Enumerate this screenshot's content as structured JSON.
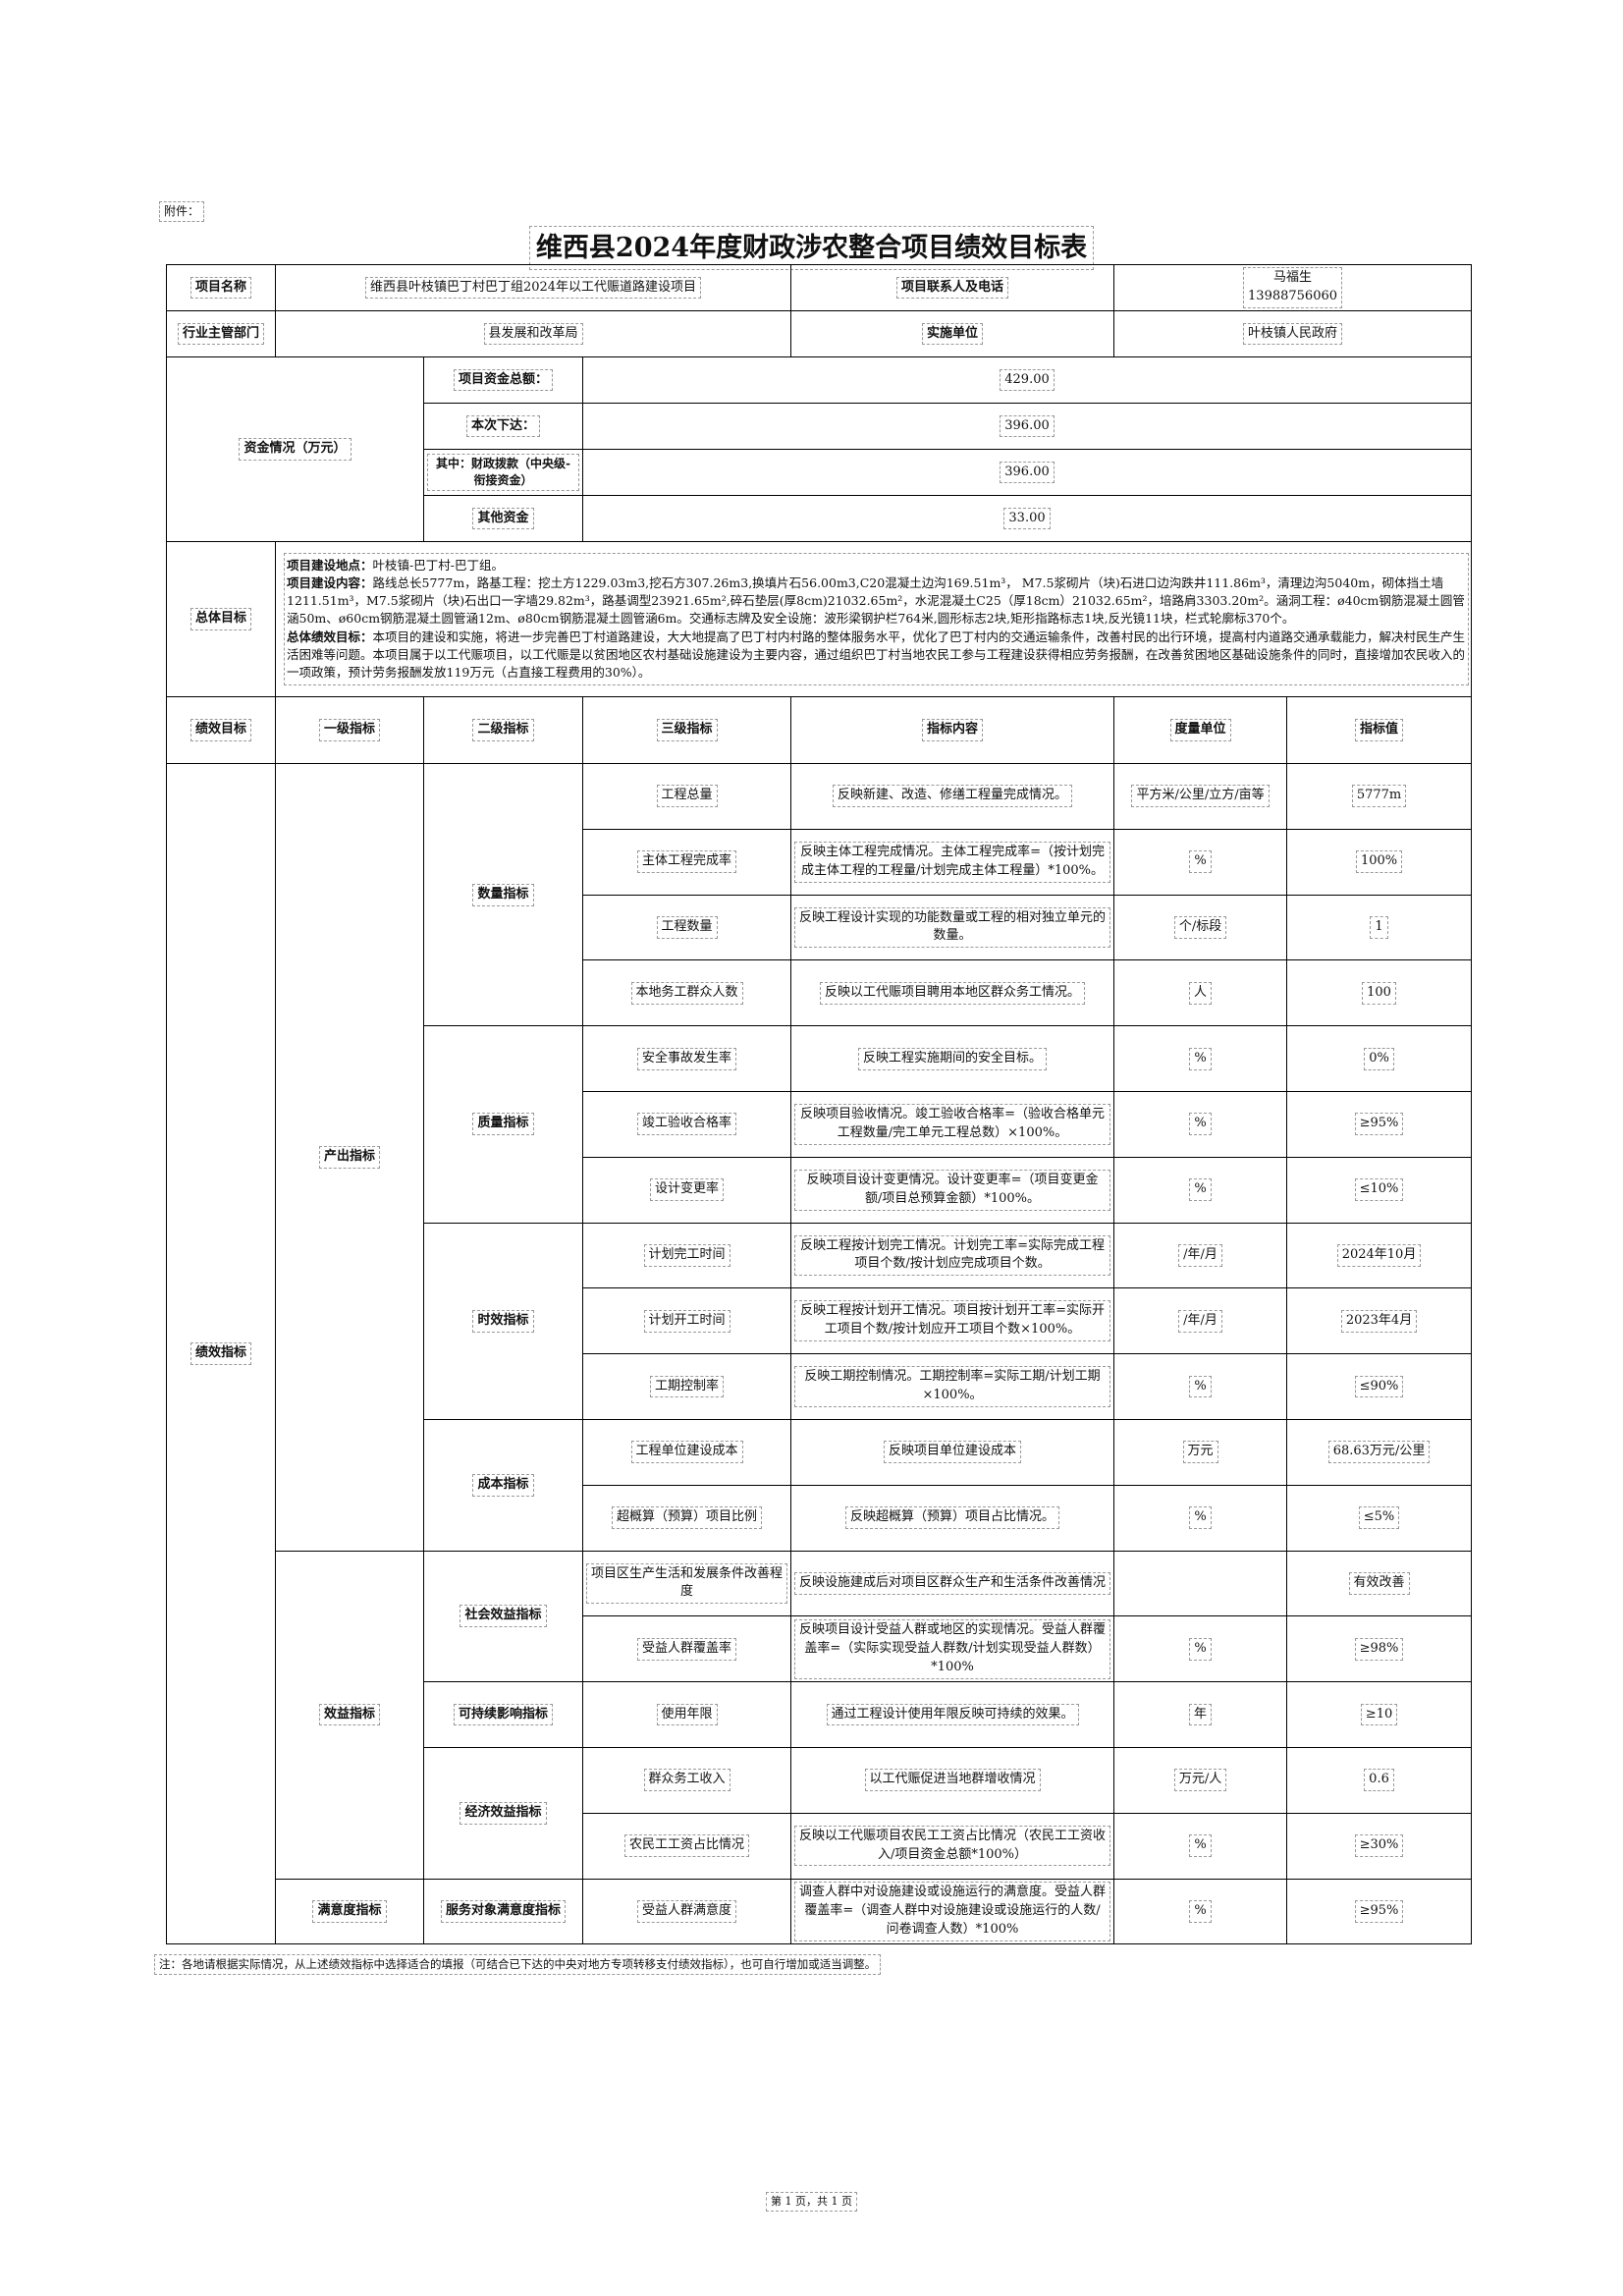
{
  "attachment_label": "附件：",
  "title": "维西县2024年度财政涉农整合项目绩效目标表",
  "project": {
    "name_label": "项目名称",
    "name_value": "维西县叶枝镇巴丁村巴丁组2024年以工代赈道路建设项目",
    "contact_label": "项目联系人及电话",
    "contact_name": "马福生",
    "contact_phone": "13988756060",
    "dept_label": "行业主管部门",
    "dept_value": "县发展和改革局",
    "impl_label": "实施单位",
    "impl_value": "叶枝镇人民政府"
  },
  "funds": {
    "label": "资金情况（万元）",
    "rows": [
      {
        "label": "项目资金总额：",
        "value": "429.00"
      },
      {
        "label": "本次下达：",
        "value": "396.00"
      },
      {
        "label": "其中：财政拨款（中央级-衔接资金）",
        "value": "396.00"
      },
      {
        "label": "其他资金",
        "value": "33.00"
      }
    ]
  },
  "goal": {
    "label": "总体目标",
    "location_label": "项目建设地点：",
    "location": "叶枝镇-巴丁村-巴丁组。",
    "content_label": "项目建设内容：",
    "content": "路线总长5777m，路基工程：挖土方1229.03m3,挖石方307.26m3,换填片石56.00m3,C20混凝土边沟169.51m³， M7.5浆砌片（块)石进口边沟跌井111.86m³，清理边沟5040m，砌体挡土墙1211.51m³，M7.5浆砌片（块)石出口一字墙29.82m³，路基调型23921.65m²,碎石垫层(厚8cm)21032.65m²，水泥混凝土C25（厚18cm）21032.65m²，培路肩3303.20m²。涵洞工程：ø40cm钢筋混凝土圆管涵50m、ø60cm钢筋混凝土圆管涵12m、ø80cm钢筋混凝土圆管涵6m。交通标志牌及安全设施：波形梁钢护栏764米,圆形标志2块,矩形指路标志1块,反光镜11块，栏式轮廓标370个。",
    "perf_label": "总体绩效目标：",
    "perf": "本项目的建设和实施，将进一步完善巴丁村道路建设，大大地提高了巴丁村内村路的整体服务水平，优化了巴丁村内的交通运输条件，改善村民的出行环境，提高村内道路交通承载能力，解决村民生产生活困难等问题。本项目属于以工代赈项目，以工代赈是以贫困地区农村基础设施建设为主要内容，通过组织巴丁村当地农民工参与工程建设获得相应劳务报酬，在改善贫困地区基础设施条件的同时，直接增加农民收入的一项政策，预计劳务报酬发放119万元（占直接工程费用的30%）。"
  },
  "headers": [
    "绩效目标",
    "一级指标",
    "二级指标",
    "三级指标",
    "指标内容",
    "度量单位",
    "指标值"
  ],
  "perf_label": "绩效指标",
  "level1": [
    {
      "name": "产出指标",
      "groups": [
        {
          "name": "数量指标",
          "items": [
            {
              "name": "工程总量",
              "content": "反映新建、改造、修缮工程量完成情况。",
              "unit": "平方米/公里/立方/亩等",
              "value": "5777m"
            },
            {
              "name": "主体工程完成率",
              "content": "反映主体工程完成情况。主体工程完成率=（按计划完成主体工程的工程量/计划完成主体工程量）*100%。",
              "unit": "%",
              "value": "100%"
            },
            {
              "name": "工程数量",
              "content": "反映工程设计实现的功能数量或工程的相对独立单元的数量。",
              "unit": "个/标段",
              "value": "1"
            },
            {
              "name": "本地务工群众人数",
              "content": "反映以工代赈项目聘用本地区群众务工情况。",
              "unit": "人",
              "value": "100"
            }
          ]
        },
        {
          "name": "质量指标",
          "items": [
            {
              "name": "安全事故发生率",
              "content": "反映工程实施期间的安全目标。",
              "unit": "%",
              "value": "0%"
            },
            {
              "name": "竣工验收合格率",
              "content": "反映项目验收情况。竣工验收合格率=（验收合格单元工程数量/完工单元工程总数）×100%。",
              "unit": "%",
              "value": "≥95%"
            },
            {
              "name": "设计变更率",
              "content": "反映项目设计变更情况。设计变更率=（项目变更金额/项目总预算金额）*100%。",
              "unit": "%",
              "value": "≤10%"
            }
          ]
        },
        {
          "name": "时效指标",
          "items": [
            {
              "name": "计划完工时间",
              "content": "反映工程按计划完工情况。计划完工率=实际完成工程项目个数/按计划应完成项目个数。",
              "unit": "/年/月",
              "value": "2024年10月"
            },
            {
              "name": "计划开工时间",
              "content": "反映工程按计划开工情况。项目按计划开工率=实际开工项目个数/按计划应开工项目个数×100%。",
              "unit": "/年/月",
              "value": "2023年4月"
            },
            {
              "name": "工期控制率",
              "content": "反映工期控制情况。工期控制率=实际工期/计划工期×100%。",
              "unit": "%",
              "value": "≤90%"
            }
          ]
        },
        {
          "name": "成本指标",
          "items": [
            {
              "name": "工程单位建设成本",
              "content": "反映项目单位建设成本",
              "unit": "万元",
              "value": "68.63万元/公里"
            },
            {
              "name": "超概算（预算）项目比例",
              "content": "反映超概算（预算）项目占比情况。",
              "unit": "%",
              "value": "≤5%"
            }
          ]
        }
      ]
    },
    {
      "name": "效益指标",
      "groups": [
        {
          "name": "社会效益指标",
          "items": [
            {
              "name": "项目区生产生活和发展条件改善程度",
              "content": "反映设施建成后对项目区群众生产和生活条件改善情况",
              "unit": "",
              "value": "有效改善"
            },
            {
              "name": "受益人群覆盖率",
              "content": "反映项目设计受益人群或地区的实现情况。受益人群覆盖率=（实际实现受益人群数/计划实现受益人群数）*100%",
              "unit": "%",
              "value": "≥98%"
            }
          ]
        },
        {
          "name": "可持续影响指标",
          "items": [
            {
              "name": "使用年限",
              "content": "通过工程设计使用年限反映可持续的效果。",
              "unit": "年",
              "value": "≥10"
            }
          ]
        },
        {
          "name": "经济效益指标",
          "items": [
            {
              "name": "群众务工收入",
              "content": "以工代赈促进当地群增收情况",
              "unit": "万元/人",
              "value": "0.6"
            },
            {
              "name": "农民工工资占比情况",
              "content": "反映以工代赈项目农民工工资占比情况（农民工工资收入/项目资金总额*100%）",
              "unit": "%",
              "value": "≥30%"
            }
          ]
        }
      ]
    },
    {
      "name": "满意度指标",
      "groups": [
        {
          "name": "服务对象满意度指标",
          "items": [
            {
              "name": "受益人群满意度",
              "content": "调查人群中对设施建设或设施运行的满意度。受益人群覆盖率=（调查人群中对设施建设或设施运行的人数/问卷调查人数）*100%",
              "unit": "%",
              "value": "≥95%"
            }
          ]
        }
      ]
    }
  ],
  "note": "注：各地请根据实际情况，从上述绩效指标中选择适合的填报（可结合已下达的中央对地方专项转移支付绩效指标），也可自行增加或适当调整。",
  "pager": "第 1 页，共 1 页"
}
